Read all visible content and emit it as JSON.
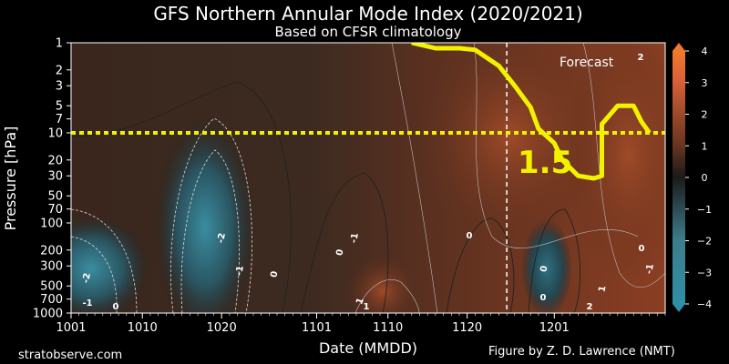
{
  "chart_data": {
    "type": "heatmap",
    "title": "GFS Northern Annular Mode Index (2020/2021)",
    "subtitle": "Based on CFSR climatology",
    "xlabel": "Date (MMDD)",
    "ylabel": "Pressure [hPa]",
    "x_scale": "date",
    "y_scale": "log-inverted",
    "xlim": [
      "2020-10-01",
      "2020-12-15"
    ],
    "ylim": [
      1000,
      1
    ],
    "x_ticks": [
      "1001",
      "1010",
      "1020",
      "1101",
      "1110",
      "1120",
      "1201"
    ],
    "x_tick_dates": [
      "2020-10-01",
      "2020-10-10",
      "2020-10-20",
      "2020-11-01",
      "2020-11-10",
      "2020-11-20",
      "2020-12-01"
    ],
    "y_ticks": [
      1,
      2,
      3,
      5,
      7,
      10,
      20,
      30,
      50,
      70,
      100,
      200,
      300,
      500,
      700,
      1000
    ],
    "colorbar": {
      "range": [
        -4,
        4
      ],
      "ticks": [
        4,
        3,
        2,
        1,
        0,
        -1,
        -2,
        -3,
        -4
      ],
      "colors": [
        "#2f8fa6",
        "#3d7d8c",
        "#2d4a52",
        "#1a1a1a",
        "#3b2418",
        "#6a3520",
        "#9a4a2a",
        "#d9603a",
        "#f07a2a"
      ]
    },
    "forecast_start": "2020-11-25",
    "forecast_label": "Forecast",
    "reference_level_hPa": 10,
    "annotations": [
      {
        "text": "1.5",
        "color": "#f2f200"
      }
    ],
    "contour_labels": [
      "-2",
      "-2",
      "-1",
      "-1",
      "0",
      "0",
      "0",
      "0",
      "0",
      "0",
      "1",
      "2",
      "-1",
      "1",
      "0",
      "-1",
      "1",
      "2"
    ],
    "threshold_line": {
      "level": 1.5,
      "color": "#f2f200",
      "points": [
        {
          "x": "2020-11-13",
          "y": 1.0
        },
        {
          "x": "2020-11-16",
          "y": 1.15
        },
        {
          "x": "2020-11-19",
          "y": 1.15
        },
        {
          "x": "2020-11-21",
          "y": 1.2
        },
        {
          "x": "2020-11-24",
          "y": 1.8
        },
        {
          "x": "2020-11-26",
          "y": 3.0
        },
        {
          "x": "2020-11-28",
          "y": 5.2
        },
        {
          "x": "2020-11-29",
          "y": 9.0
        },
        {
          "x": "2020-12-01",
          "y": 13.0
        },
        {
          "x": "2020-12-02",
          "y": 20.0
        },
        {
          "x": "2020-12-04",
          "y": 30.0
        },
        {
          "x": "2020-12-06",
          "y": 32.0
        },
        {
          "x": "2020-12-07",
          "y": 30.0
        },
        {
          "x": "2020-12-07",
          "y": 8.0
        },
        {
          "x": "2020-12-09",
          "y": 5.0
        },
        {
          "x": "2020-12-11",
          "y": 5.0
        },
        {
          "x": "2020-12-12",
          "y": 7.5
        },
        {
          "x": "2020-12-13",
          "y": 10.0
        }
      ]
    }
  },
  "footer": {
    "left": "stratobserve.com",
    "right": "Figure by Z. D. Lawrence (NMT)"
  }
}
